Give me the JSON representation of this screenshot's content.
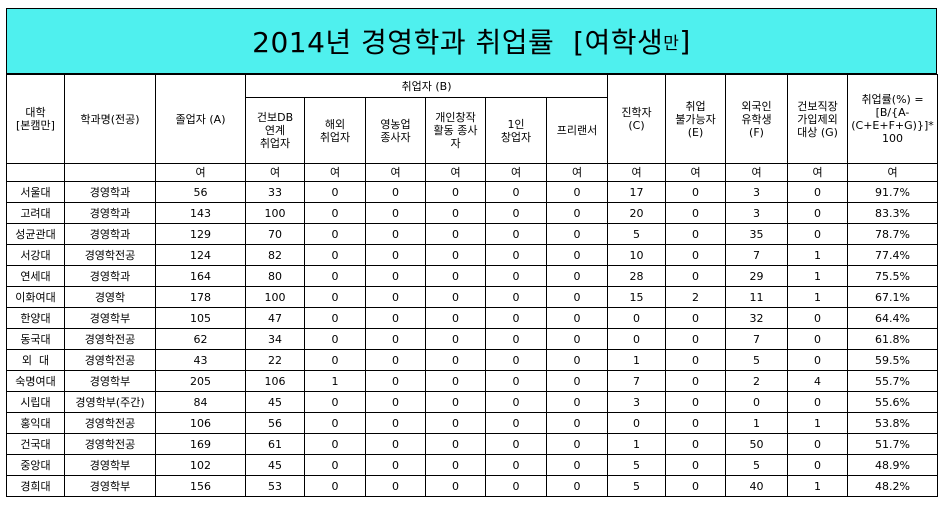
{
  "title": {
    "main": "2014년 경영학과 취업률  [여학생",
    "small": "만",
    "close": "]"
  },
  "headers": {
    "university": "대학\n[본캠만]",
    "department": "학과명(전공)",
    "graduates": "졸업자 (A)",
    "employed_group": "취업자 (B)",
    "employed_db": "건보DB\n연계\n취업자",
    "overseas": "해외\n취업자",
    "farming": "영농업\n종사자",
    "creative": "개인창작\n활동 종사\n자",
    "startup": "1인\n창업자",
    "freelancer": "프리랜서",
    "further_study": "진학자\n(C)",
    "unable": "취업\n불가능자\n(E)",
    "foreign": "외국인\n유학생\n(F)",
    "excluded": "건보직장\n가입제외\n대상 (G)",
    "rate": "취업률(%) =\n[B/{A-\n(C+E+F+G)}]*\n100"
  },
  "unit_label": "여",
  "rows": [
    {
      "univ": "서울대",
      "dept": "경영학과",
      "a": "56",
      "db": "33",
      "overseas": "0",
      "farm": "0",
      "creative": "0",
      "startup": "0",
      "free": "0",
      "c": "17",
      "e": "0",
      "f": "3",
      "g": "0",
      "rate": "91.7%"
    },
    {
      "univ": "고려대",
      "dept": "경영학과",
      "a": "143",
      "db": "100",
      "overseas": "0",
      "farm": "0",
      "creative": "0",
      "startup": "0",
      "free": "0",
      "c": "20",
      "e": "0",
      "f": "3",
      "g": "0",
      "rate": "83.3%"
    },
    {
      "univ": "성균관대",
      "dept": "경영학과",
      "a": "129",
      "db": "70",
      "overseas": "0",
      "farm": "0",
      "creative": "0",
      "startup": "0",
      "free": "0",
      "c": "5",
      "e": "0",
      "f": "35",
      "g": "0",
      "rate": "78.7%"
    },
    {
      "univ": "서강대",
      "dept": "경영학전공",
      "a": "124",
      "db": "82",
      "overseas": "0",
      "farm": "0",
      "creative": "0",
      "startup": "0",
      "free": "0",
      "c": "10",
      "e": "0",
      "f": "7",
      "g": "1",
      "rate": "77.4%"
    },
    {
      "univ": "연세대",
      "dept": "경영학과",
      "a": "164",
      "db": "80",
      "overseas": "0",
      "farm": "0",
      "creative": "0",
      "startup": "0",
      "free": "0",
      "c": "28",
      "e": "0",
      "f": "29",
      "g": "1",
      "rate": "75.5%"
    },
    {
      "univ": "이화여대",
      "dept": "경영학",
      "a": "178",
      "db": "100",
      "overseas": "0",
      "farm": "0",
      "creative": "0",
      "startup": "0",
      "free": "0",
      "c": "15",
      "e": "2",
      "f": "11",
      "g": "1",
      "rate": "67.1%"
    },
    {
      "univ": "한양대",
      "dept": "경영학부",
      "a": "105",
      "db": "47",
      "overseas": "0",
      "farm": "0",
      "creative": "0",
      "startup": "0",
      "free": "0",
      "c": "0",
      "e": "0",
      "f": "32",
      "g": "0",
      "rate": "64.4%"
    },
    {
      "univ": "동국대",
      "dept": "경영학전공",
      "a": "62",
      "db": "34",
      "overseas": "0",
      "farm": "0",
      "creative": "0",
      "startup": "0",
      "free": "0",
      "c": "0",
      "e": "0",
      "f": "7",
      "g": "0",
      "rate": "61.8%"
    },
    {
      "univ": "외  대",
      "dept": "경영학전공",
      "a": "43",
      "db": "22",
      "overseas": "0",
      "farm": "0",
      "creative": "0",
      "startup": "0",
      "free": "0",
      "c": "1",
      "e": "0",
      "f": "5",
      "g": "0",
      "rate": "59.5%"
    },
    {
      "univ": "숙명여대",
      "dept": "경영학부",
      "a": "205",
      "db": "106",
      "overseas": "1",
      "farm": "0",
      "creative": "0",
      "startup": "0",
      "free": "0",
      "c": "7",
      "e": "0",
      "f": "2",
      "g": "4",
      "rate": "55.7%"
    },
    {
      "univ": "시립대",
      "dept": "경영학부(주간)",
      "a": "84",
      "db": "45",
      "overseas": "0",
      "farm": "0",
      "creative": "0",
      "startup": "0",
      "free": "0",
      "c": "3",
      "e": "0",
      "f": "0",
      "g": "0",
      "rate": "55.6%"
    },
    {
      "univ": "홍익대",
      "dept": "경영학전공",
      "a": "106",
      "db": "56",
      "overseas": "0",
      "farm": "0",
      "creative": "0",
      "startup": "0",
      "free": "0",
      "c": "0",
      "e": "0",
      "f": "1",
      "g": "1",
      "rate": "53.8%"
    },
    {
      "univ": "건국대",
      "dept": "경영학전공",
      "a": "169",
      "db": "61",
      "overseas": "0",
      "farm": "0",
      "creative": "0",
      "startup": "0",
      "free": "0",
      "c": "1",
      "e": "0",
      "f": "50",
      "g": "0",
      "rate": "51.7%"
    },
    {
      "univ": "중앙대",
      "dept": "경영학부",
      "a": "102",
      "db": "45",
      "overseas": "0",
      "farm": "0",
      "creative": "0",
      "startup": "0",
      "free": "0",
      "c": "5",
      "e": "0",
      "f": "5",
      "g": "0",
      "rate": "48.9%"
    },
    {
      "univ": "경희대",
      "dept": "경영학부",
      "a": "156",
      "db": "53",
      "overseas": "0",
      "farm": "0",
      "creative": "0",
      "startup": "0",
      "free": "0",
      "c": "5",
      "e": "0",
      "f": "40",
      "g": "1",
      "rate": "48.2%"
    }
  ],
  "colors": {
    "title_bg": "#4ff0ee"
  }
}
